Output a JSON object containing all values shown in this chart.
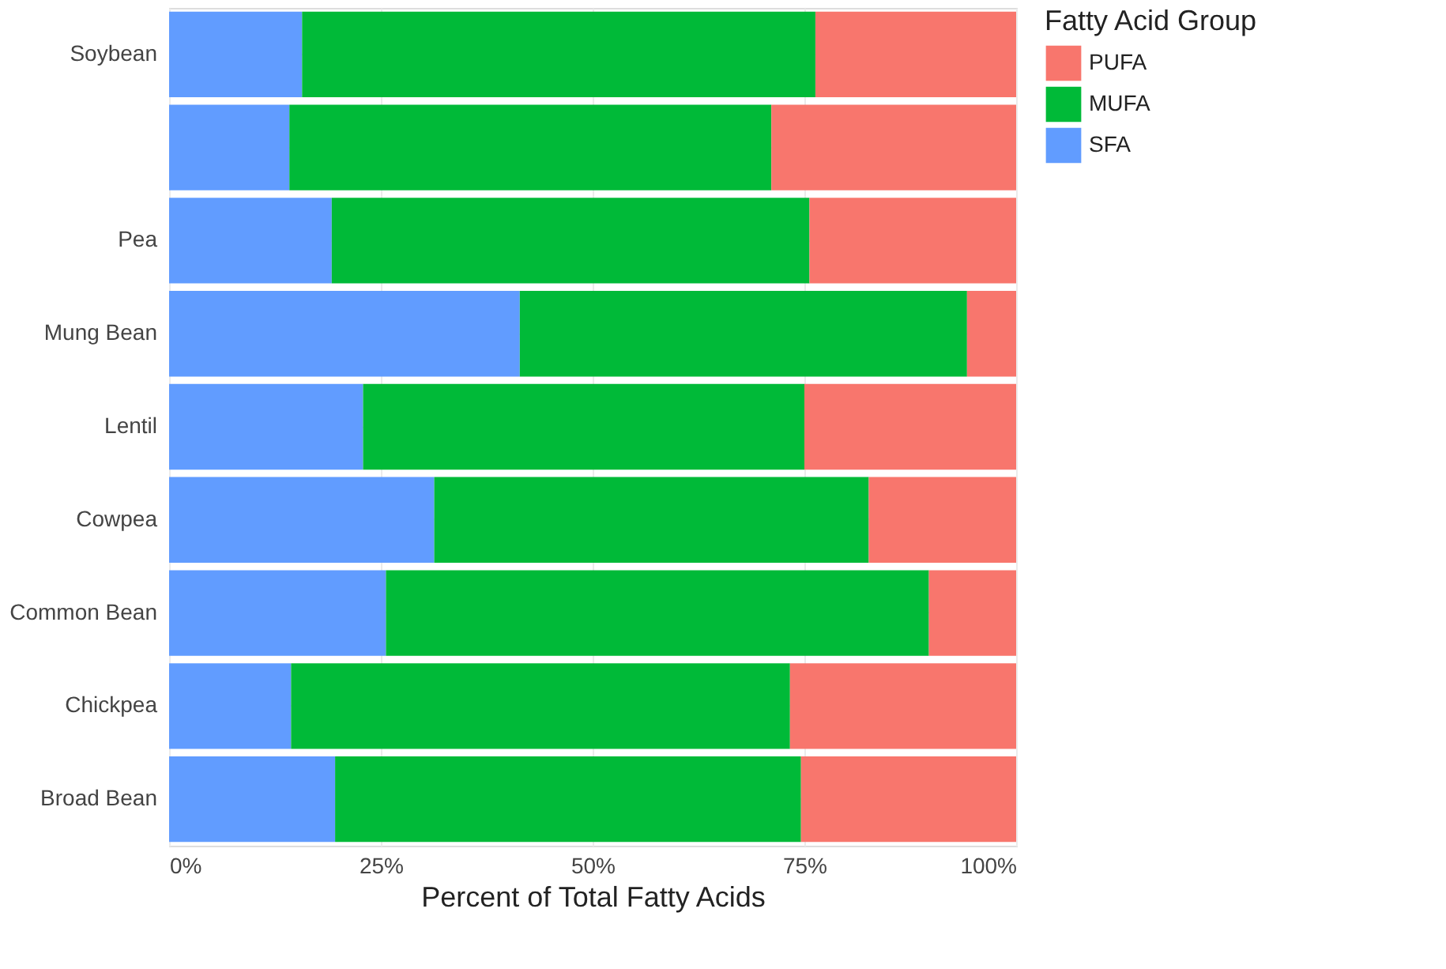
{
  "chart_data": {
    "type": "bar",
    "orientation": "horizontal",
    "stacked": true,
    "xlabel": "Percent of Total Fatty Acids",
    "legend_title": "Fatty Acid Group",
    "legend": "right",
    "grid": true,
    "categories": [
      "Soybean",
      null,
      "Pea",
      "Mung Bean",
      "Lentil",
      "Cowpea",
      "Common Bean",
      "Chickpea",
      "Broad Bean"
    ],
    "series": [
      {
        "name": "SFA",
        "color": "#619cff",
        "values": [
          15.7,
          14.2,
          19.2,
          41.4,
          22.9,
          31.3,
          25.6,
          14.4,
          19.6
        ]
      },
      {
        "name": "MUFA",
        "color": "#00ba38",
        "values": [
          60.6,
          56.9,
          56.4,
          52.8,
          52.1,
          51.3,
          64.1,
          58.9,
          55.0
        ]
      },
      {
        "name": "PUFA",
        "color": "#f8766d",
        "values": [
          23.7,
          28.9,
          24.4,
          5.8,
          25.0,
          17.4,
          10.3,
          26.7,
          25.4
        ]
      }
    ],
    "xlim": [
      0,
      100
    ],
    "xticks": [
      {
        "value": 0,
        "label": "0%"
      },
      {
        "value": 25,
        "label": "25%"
      },
      {
        "value": 50,
        "label": "50%"
      },
      {
        "value": 75,
        "label": "75%"
      },
      {
        "value": 100,
        "label": "100%"
      }
    ]
  }
}
